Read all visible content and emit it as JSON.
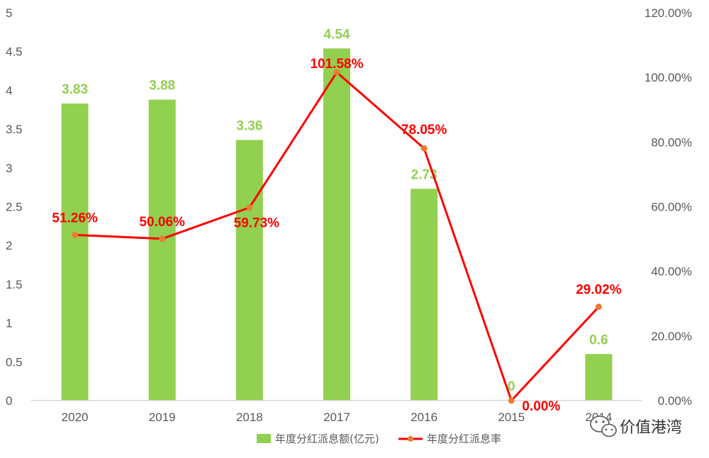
{
  "chart_data": {
    "type": "bar+line",
    "categories": [
      "2020",
      "2019",
      "2018",
      "2017",
      "2016",
      "2015",
      "2014"
    ],
    "series": [
      {
        "name": "年度分红派息额(亿元)",
        "type": "bar",
        "axis": "left",
        "color": "#92d050",
        "values": [
          3.83,
          3.88,
          3.36,
          4.54,
          2.73,
          0,
          0.6
        ],
        "labels": [
          "3.83",
          "3.88",
          "3.36",
          "4.54",
          "2.73",
          "0",
          "0.6"
        ]
      },
      {
        "name": "年度分红派息率",
        "type": "line",
        "axis": "right",
        "color": "#ff0000",
        "marker_color": "#ed7d31",
        "values": [
          51.26,
          50.06,
          59.73,
          101.58,
          78.05,
          0.0,
          29.02
        ],
        "labels": [
          "51.26%",
          "50.06%",
          "59.73%",
          "101.58%",
          "78.05%",
          "0.00%",
          "29.02%"
        ]
      }
    ],
    "y_left": {
      "min": 0,
      "max": 5,
      "ticks": [
        "0",
        "0.5",
        "1",
        "1.5",
        "2",
        "2.5",
        "3",
        "3.5",
        "4",
        "4.5",
        "5"
      ]
    },
    "y_right": {
      "min": 0,
      "max": 120,
      "ticks": [
        "0.00%",
        "20.00%",
        "40.00%",
        "60.00%",
        "80.00%",
        "100.00%",
        "120.00%"
      ]
    },
    "grid": false,
    "legend_position": "bottom"
  },
  "watermark": {
    "text": "价值港湾",
    "icon": "wechat-icon"
  }
}
